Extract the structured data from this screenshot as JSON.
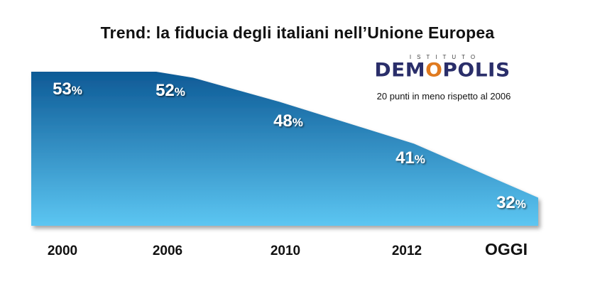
{
  "title": "Trend: la fiducia degli italiani nell’Unione Europea",
  "logo": {
    "top_text": "ISTITUTO",
    "main_before": "DEM",
    "main_o": "O",
    "main_after": "POLIS"
  },
  "annotation": "20 punti in meno rispetto al 2006",
  "colors": {
    "area_top": "#0d5a96",
    "area_bottom": "#5cc6f2",
    "label": "#ffffff",
    "text": "#111111",
    "logo_dark": "#2a2e6a",
    "logo_accent": "#e07a1f"
  },
  "chart_data": {
    "type": "area",
    "title": "Trend: la fiducia degli italiani nell’Unione Europea",
    "categories": [
      "2000",
      "2006",
      "2010",
      "2012",
      "OGGI"
    ],
    "series": [
      {
        "values": [
          53,
          52,
          48,
          41,
          32
        ],
        "labels": [
          "53",
          "52",
          "48",
          "41",
          "32"
        ]
      }
    ],
    "unit": "%",
    "xlabel": "",
    "ylabel": "",
    "grid": false,
    "legend": "none"
  }
}
